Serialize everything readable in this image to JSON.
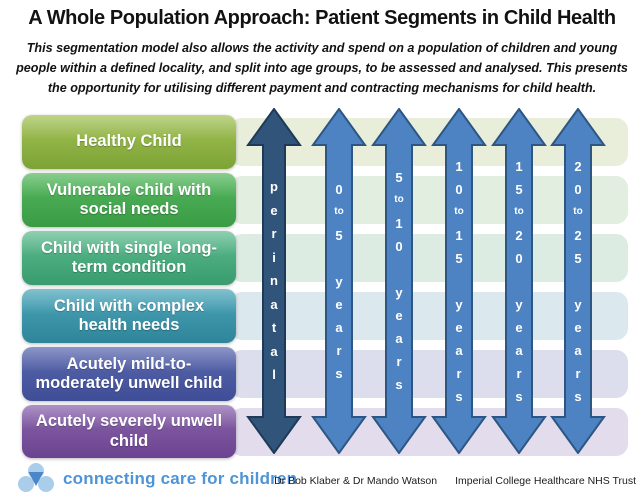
{
  "title": "A Whole Population Approach: Patient Segments in Child Health",
  "subtitle_lines": [
    "This segmentation model also allows the activity and spend on a population of children and young",
    "people within a defined locality, and split into age groups, to be assessed and analysed. This presents",
    "the opportunity for utilising different payment and contracting mechanisms for child health."
  ],
  "segments": [
    {
      "label": "Healthy Child",
      "color_top": "#a2c156",
      "color_bottom": "#7da335",
      "band_color": "#e9eeda"
    },
    {
      "label": "Vulnerable child with social needs",
      "color_top": "#55b75e",
      "color_bottom": "#3a9b45",
      "band_color": "#e2eedf"
    },
    {
      "label": "Child with single long-term condition",
      "color_top": "#5dbb8f",
      "color_bottom": "#389c6e",
      "band_color": "#dcece3"
    },
    {
      "label": "Child with complex health needs",
      "color_top": "#4ba6ba",
      "color_bottom": "#2f8499",
      "band_color": "#dbe8ed"
    },
    {
      "label": "Acutely mild-to-moderately unwell child",
      "color_top": "#5a68ae",
      "color_bottom": "#3f4d97",
      "band_color": "#dcdded"
    },
    {
      "label": "Acutely severely unwell child",
      "color_top": "#8a63ac",
      "color_bottom": "#6b4390",
      "band_color": "#e3dcec"
    }
  ],
  "arrows": {
    "perinatal": {
      "label": "perinatal",
      "lines": [
        "p",
        "e",
        "r",
        "i",
        "n",
        "a",
        "t",
        "a",
        "l"
      ],
      "fill": "#30547a",
      "stroke": "#1e3a58"
    },
    "age_fill": "#4d82c3",
    "age_stroke": "#2d5683",
    "age_groups": [
      {
        "label": "0 to 5 years",
        "lines": [
          "0",
          "to",
          "5",
          "",
          "y",
          "e",
          "a",
          "r",
          "s"
        ]
      },
      {
        "label": "5 to 10 years",
        "lines": [
          "5",
          "to",
          "1",
          "0",
          "",
          "y",
          "e",
          "a",
          "r",
          "s"
        ]
      },
      {
        "label": "10 to 15 years",
        "lines": [
          "1",
          "0",
          "to",
          "1",
          "5",
          "",
          "y",
          "e",
          "a",
          "r",
          "s"
        ]
      },
      {
        "label": "15 to 20 years",
        "lines": [
          "1",
          "5",
          "to",
          "2",
          "0",
          "",
          "y",
          "e",
          "a",
          "r",
          "s"
        ]
      },
      {
        "label": "20 to 25 years",
        "lines": [
          "2",
          "0",
          "to",
          "2",
          "5",
          "",
          "y",
          "e",
          "a",
          "r",
          "s"
        ]
      }
    ]
  },
  "footer": {
    "logo_text": "connecting care for children",
    "logo_text_color": "#4d94d8",
    "logo_light_color": "#a9cdea",
    "logo_core_color": "#4a86c8",
    "credits": "Dr Bob Klaber & Dr Mando Watson",
    "organisation": "Imperial College Healthcare NHS Trust"
  }
}
